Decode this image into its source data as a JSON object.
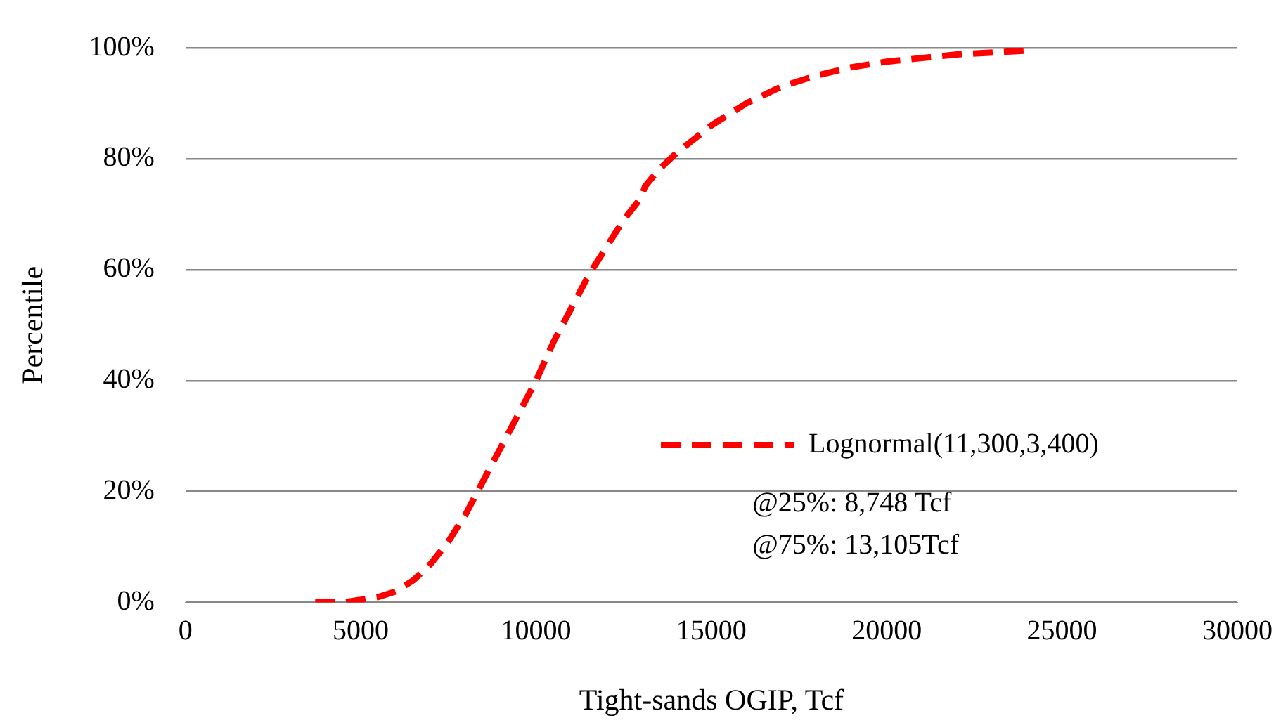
{
  "chart_data": {
    "type": "line",
    "xlabel": "Tight-sands OGIP, Tcf",
    "ylabel": "Percentile",
    "x": [
      3700,
      4500,
      5000,
      5500,
      6000,
      6500,
      7000,
      7500,
      8000,
      8748,
      9000,
      9500,
      10000,
      10500,
      11000,
      11500,
      12000,
      12500,
      13000,
      13105,
      13500,
      14000,
      15000,
      16000,
      17000,
      18000,
      19000,
      20000,
      22000,
      24000
    ],
    "series": [
      {
        "name": "Lognormal(11,300,3,400)",
        "color": "#ff0000",
        "values": [
          0,
          0,
          0.5,
          1,
          2,
          4,
          7,
          11,
          16,
          25,
          28,
          34,
          40,
          47,
          53,
          59,
          64,
          69,
          73,
          75,
          78,
          81,
          86,
          90,
          93,
          95,
          96.5,
          97.5,
          98.8,
          99.5
        ]
      }
    ],
    "xlim": [
      0,
      30000
    ],
    "xticks": [
      0,
      5000,
      10000,
      15000,
      20000,
      25000,
      30000
    ],
    "ylim": [
      0,
      100
    ],
    "yticks": [
      {
        "value": 0,
        "label": "0%"
      },
      {
        "value": 20,
        "label": "20%"
      },
      {
        "value": 40,
        "label": "40%"
      },
      {
        "value": 60,
        "label": "60%"
      },
      {
        "value": 80,
        "label": "80%"
      },
      {
        "value": 100,
        "label": "100%"
      }
    ],
    "grid": "y",
    "legend": "bottom right",
    "marker": "none",
    "line_style": "dashed",
    "annotations": [
      "@25%: 8,748 Tcf",
      "@75%: 13,105Tcf"
    ]
  }
}
